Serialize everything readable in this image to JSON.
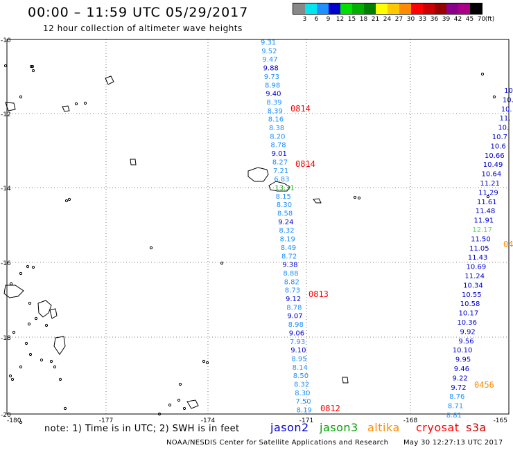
{
  "title": "00:00 – 11:59 UTC 05/29/2017",
  "subtitle": "12 hour collection of altimeter wave heights",
  "legend": {
    "unit": "(ft)",
    "bins": [
      {
        "label": "3",
        "color": "#888888"
      },
      {
        "label": "6",
        "color": "#00e5ee"
      },
      {
        "label": "9",
        "color": "#1e90ff"
      },
      {
        "label": "12",
        "color": "#0000cd"
      },
      {
        "label": "15",
        "color": "#00e000"
      },
      {
        "label": "18",
        "color": "#00b000"
      },
      {
        "label": "21",
        "color": "#008000"
      },
      {
        "label": "24",
        "color": "#ffff00"
      },
      {
        "label": "27",
        "color": "#ffc800"
      },
      {
        "label": "30",
        "color": "#ff8c00"
      },
      {
        "label": "33",
        "color": "#ff0000"
      },
      {
        "label": "36",
        "color": "#cc0000"
      },
      {
        "label": "39",
        "color": "#990000"
      },
      {
        "label": "42",
        "color": "#8b008b"
      },
      {
        "label": "45",
        "color": "#aa0088"
      },
      {
        "label": "70",
        "color": "#000000"
      }
    ]
  },
  "axes": {
    "lat_labels": [
      "-10",
      "-12",
      "-14",
      "-16",
      "-18",
      "-20"
    ],
    "lon_labels": [
      "-180",
      "-177",
      "-174",
      "-171",
      "-168",
      "-165"
    ]
  },
  "tracks": [
    {
      "satellite": "jason2",
      "values": [
        "9.31",
        "9.52",
        "9.47",
        "9.88",
        "9.73",
        "8.98",
        "9.40",
        "8.39",
        "8.39",
        "8.16",
        "8.38",
        "8.20",
        "8.78",
        "9.01",
        "8.27",
        "7.21",
        "6.83",
        "13.31",
        "8.15",
        "8.30",
        "8.58",
        "9.24",
        "8.32",
        "8.19",
        "8.49",
        "8.72",
        "9.38",
        "8.88",
        "8.82",
        "8.73",
        "9.12",
        "8.78",
        "9.07",
        "8.98",
        "9.06",
        "7.93",
        "9.10",
        "8.95",
        "8.14",
        "8.50",
        "8.32",
        "8.30",
        "7.50",
        "8.19"
      ],
      "colors": [
        "#1e90ff",
        "#1e90ff",
        "#1e90ff",
        "#0000cd",
        "#1e90ff",
        "#1e90ff",
        "#0000cd",
        "#1e90ff",
        "#1e90ff",
        "#1e90ff",
        "#1e90ff",
        "#1e90ff",
        "#1e90ff",
        "#0000cd",
        "#1e90ff",
        "#1e90ff",
        "#1e90ff",
        "#00c000",
        "#1e90ff",
        "#1e90ff",
        "#1e90ff",
        "#0000cd",
        "#1e90ff",
        "#1e90ff",
        "#1e90ff",
        "#1e90ff",
        "#0000cd",
        "#1e90ff",
        "#1e90ff",
        "#1e90ff",
        "#0000cd",
        "#1e90ff",
        "#0000cd",
        "#1e90ff",
        "#0000cd",
        "#1e90ff",
        "#0000cd",
        "#1e90ff",
        "#1e90ff",
        "#1e90ff",
        "#1e90ff",
        "#1e90ff",
        "#1e90ff",
        "#1e90ff"
      ]
    },
    {
      "satellite": "jason2",
      "values": [
        "10.",
        "10.",
        "10.",
        "11.",
        "10.",
        "10.7",
        "10.6",
        "10.66",
        "10.49",
        "10.64",
        "11.21",
        "11.29",
        "11.61",
        "11.48",
        "11.91",
        "12.17",
        "11.50",
        "11.05",
        "11.43",
        "10.69",
        "11.24",
        "10.34",
        "10.55",
        "10.58",
        "10.17",
        "10.36",
        "9.92",
        "9.56",
        "10.10",
        "9.95",
        "9.46",
        "9.22",
        "9.72",
        "8.76",
        "8.71",
        "8.81"
      ],
      "colors": [
        "#0000cd",
        "#0000cd",
        "#0000cd",
        "#0000cd",
        "#0000cd",
        "#0000cd",
        "#0000cd",
        "#0000cd",
        "#0000cd",
        "#0000cd",
        "#0000cd",
        "#0000cd",
        "#0000cd",
        "#0000cd",
        "#0000cd",
        "#66dd66",
        "#0000cd",
        "#0000cd",
        "#0000cd",
        "#0000cd",
        "#0000cd",
        "#0000cd",
        "#0000cd",
        "#0000cd",
        "#0000cd",
        "#0000cd",
        "#0000cd",
        "#0000cd",
        "#0000cd",
        "#0000cd",
        "#0000cd",
        "#0000cd",
        "#0000cd",
        "#1e90ff",
        "#1e90ff",
        "#1e90ff"
      ]
    }
  ],
  "time_labels": [
    {
      "text": "0814",
      "color": "#ff0000"
    },
    {
      "text": "0814",
      "color": "#ff0000"
    },
    {
      "text": "0813",
      "color": "#ff0000"
    },
    {
      "text": "0812",
      "color": "#ff0000"
    },
    {
      "text": "04",
      "color": "#ff8c00"
    },
    {
      "text": "0456",
      "color": "#ff8c00"
    }
  ],
  "note": "note: 1) Time is in UTC; 2) SWH is in feet",
  "satellites": [
    {
      "name": "jason2",
      "color": "#0000cd"
    },
    {
      "name": "jason3",
      "color": "#00a000"
    },
    {
      "name": "altika",
      "color": "#ff8c00"
    },
    {
      "name": "cryosat",
      "color": "#ff0000"
    },
    {
      "name": "s3a",
      "color": "#cc0000"
    }
  ],
  "credit": "NOAA/NESDIS Center for Satellite Applications and Research",
  "timestamp": "May 30 12:27:13 UTC 2017"
}
